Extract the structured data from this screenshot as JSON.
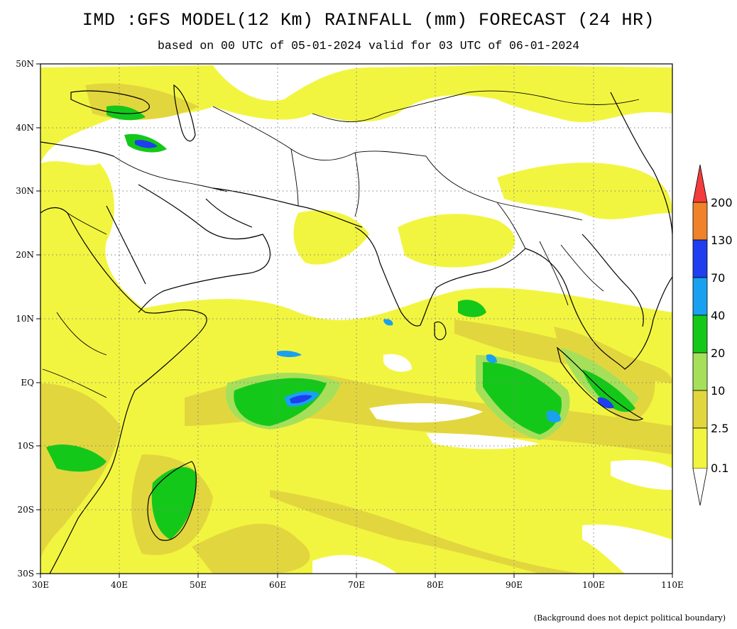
{
  "header": {
    "title": "IMD :GFS MODEL(12 Km) RAINFALL (mm) FORECAST (24 HR)",
    "subtitle": "based on 00 UTC of 05-01-2024 valid for 03 UTC of 06-01-2024"
  },
  "map": {
    "lon_range": [
      30,
      110
    ],
    "lat_range": [
      -30,
      50
    ],
    "lon_ticks": [
      "30E",
      "40E",
      "50E",
      "60E",
      "70E",
      "80E",
      "90E",
      "100E",
      "110E"
    ],
    "lat_ticks": [
      "50N",
      "40N",
      "30N",
      "20N",
      "10N",
      "EQ",
      "10S",
      "20S",
      "30S"
    ],
    "grid": "dotted"
  },
  "legend": {
    "levels": [
      "0.1",
      "2.5",
      "10",
      "20",
      "40",
      "70",
      "130",
      "200"
    ],
    "colors": [
      "#f2f540",
      "#e2d63e",
      "#a6e05a",
      "#14c81a",
      "#1aa0f0",
      "#1f3ef0",
      "#f0822a",
      "#f43c3c"
    ],
    "placement": "right"
  },
  "footnote": "(Background does not depict political boundary)"
}
